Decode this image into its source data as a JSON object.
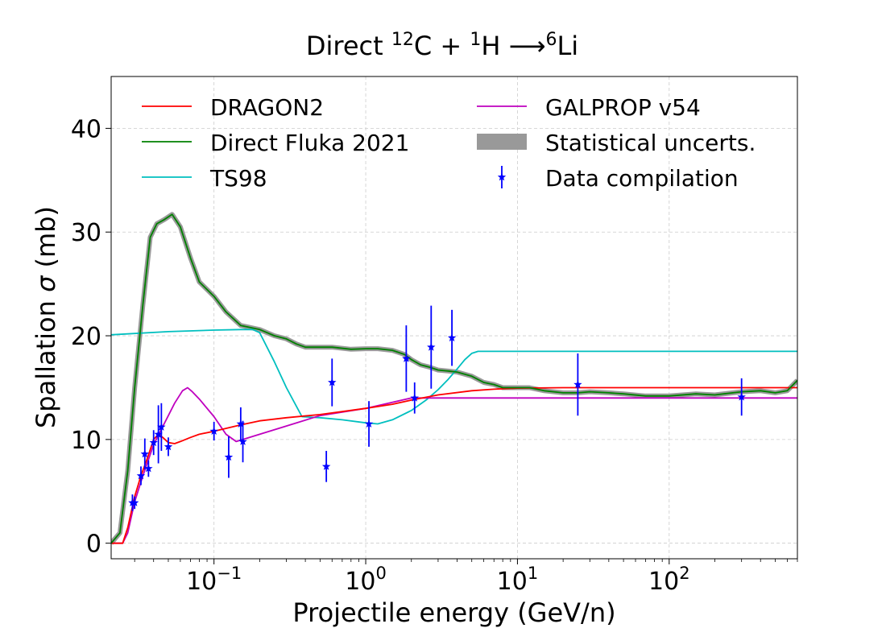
{
  "chart_data": {
    "type": "line",
    "title": {
      "prefix": "Direct ",
      "sup1": "12",
      "mid1": "C + ",
      "sup2": "1",
      "mid2": "H  ⟶",
      "sup3": "6",
      "end": "Li"
    },
    "xlabel": "Projectile energy (GeV/n)",
    "ylabel": {
      "prefix": "Spallation ",
      "symbol": "σ",
      "suffix": " (mb)"
    },
    "xscale": "log",
    "xlim": [
      0.021,
      700
    ],
    "ylim": [
      -1.5,
      45
    ],
    "xticks": [
      {
        "value": 0.1,
        "base": "10",
        "exp": "−1"
      },
      {
        "value": 1,
        "base": "10",
        "exp": "0"
      },
      {
        "value": 10,
        "base": "10",
        "exp": "1"
      },
      {
        "value": 100,
        "base": "10",
        "exp": "2"
      }
    ],
    "yticks": [
      {
        "value": 0,
        "label": "0"
      },
      {
        "value": 10,
        "label": "10"
      },
      {
        "value": 20,
        "label": "20"
      },
      {
        "value": 30,
        "label": "30"
      },
      {
        "value": 40,
        "label": "40"
      }
    ],
    "grid": true,
    "legend": {
      "position": "top",
      "columns": 2
    },
    "series": [
      {
        "name": "DRAGON2",
        "kind": "line",
        "color": "#ff0000",
        "x": [
          0.021,
          0.025,
          0.027,
          0.03,
          0.033,
          0.036,
          0.04,
          0.043,
          0.046,
          0.05,
          0.055,
          0.06,
          0.07,
          0.08,
          0.1,
          0.15,
          0.2,
          0.3,
          0.5,
          0.7,
          1.0,
          1.5,
          2,
          3,
          5,
          7,
          10,
          20,
          50,
          100,
          300,
          700
        ],
        "y": [
          0,
          0,
          1.5,
          4.5,
          6.5,
          8,
          10,
          10.5,
          10.2,
          9.7,
          9.6,
          9.8,
          10.2,
          10.5,
          10.8,
          11.4,
          11.8,
          12.1,
          12.4,
          12.7,
          13,
          13.4,
          13.8,
          14.3,
          14.7,
          14.85,
          14.95,
          15,
          15,
          15,
          15,
          15
        ]
      },
      {
        "name": "Direct Fluka 2021",
        "kind": "line",
        "color": "#008000",
        "x": [
          0.021,
          0.024,
          0.027,
          0.03,
          0.034,
          0.038,
          0.042,
          0.047,
          0.053,
          0.06,
          0.07,
          0.08,
          0.1,
          0.12,
          0.15,
          0.2,
          0.25,
          0.3,
          0.35,
          0.4,
          0.5,
          0.6,
          0.8,
          1.0,
          1.2,
          1.5,
          1.8,
          2.0,
          2.3,
          2.6,
          3.0,
          3.5,
          4.0,
          5.0,
          6.0,
          7.0,
          8.0,
          10,
          12,
          15,
          20,
          25,
          30,
          40,
          50,
          70,
          100,
          150,
          200,
          300,
          400,
          500,
          600,
          700
        ],
        "y": [
          0,
          1,
          7,
          15,
          23,
          29.5,
          30.8,
          31.2,
          31.7,
          30.5,
          27.5,
          25.2,
          23.8,
          22.3,
          21,
          20.6,
          20,
          19.7,
          19.2,
          18.9,
          18.9,
          18.9,
          18.7,
          18.75,
          18.75,
          18.6,
          18.2,
          17.7,
          17.2,
          17,
          16.7,
          16.6,
          16.5,
          16.1,
          15.5,
          15.3,
          15,
          15,
          15,
          14.7,
          14.5,
          14.5,
          14.6,
          14.5,
          14.4,
          14.2,
          14.2,
          14.4,
          14.3,
          14.6,
          14.7,
          14.5,
          14.7,
          15.7
        ]
      },
      {
        "name": "TS98",
        "kind": "line",
        "color": "#00bfbf",
        "x": [
          0.021,
          0.05,
          0.1,
          0.15,
          0.18,
          0.2,
          0.25,
          0.3,
          0.38,
          0.5,
          0.7,
          1.0,
          1.2,
          1.5,
          2.0,
          2.5,
          3.0,
          3.5,
          4.0,
          4.5,
          5.0,
          5.5,
          7,
          10,
          30,
          100,
          700
        ],
        "y": [
          20.1,
          20.4,
          20.55,
          20.6,
          20.6,
          20.3,
          17.5,
          15,
          12.2,
          12.1,
          11.9,
          11.6,
          11.5,
          11.9,
          12.8,
          13.8,
          14.8,
          15.8,
          16.8,
          17.7,
          18.3,
          18.5,
          18.5,
          18.5,
          18.5,
          18.5,
          18.5
        ]
      },
      {
        "name": "GALPROP v54",
        "kind": "line",
        "color": "#bf00bf",
        "x": [
          0.021,
          0.025,
          0.027,
          0.03,
          0.034,
          0.04,
          0.045,
          0.05,
          0.055,
          0.062,
          0.067,
          0.072,
          0.08,
          0.1,
          0.12,
          0.14,
          0.2,
          0.3,
          0.5,
          1.0,
          2.0,
          3.0,
          10,
          100,
          700
        ],
        "y": [
          0,
          0,
          1,
          4,
          6.5,
          9.5,
          11,
          12.3,
          13.5,
          14.7,
          15,
          14.6,
          13.9,
          12.2,
          10.5,
          9.8,
          10.5,
          11.3,
          12.3,
          13,
          14,
          14,
          14,
          14,
          14
        ]
      },
      {
        "name": "Statistical uncerts.",
        "kind": "band",
        "color": "#999999"
      },
      {
        "name": "Data compilation",
        "kind": "points",
        "color": "#0000ff",
        "x": [
          0.029,
          0.03,
          0.033,
          0.035,
          0.037,
          0.04,
          0.043,
          0.045,
          0.05,
          0.1,
          0.125,
          0.15,
          0.155,
          0.55,
          0.6,
          1.05,
          1.85,
          2.1,
          2.7,
          3.7,
          25,
          300
        ],
        "y": [
          3.9,
          3.9,
          6.5,
          8.6,
          7.2,
          9.7,
          10.5,
          11.2,
          9.3,
          10.8,
          8.3,
          11.5,
          9.8,
          7.4,
          15.5,
          11.5,
          17.8,
          14,
          18.9,
          19.8,
          15.3,
          14.1
        ],
        "yerr": [
          0.8,
          0.6,
          0.9,
          1.5,
          0.8,
          1.2,
          2.8,
          2.3,
          0.9,
          0.9,
          2.0,
          1.6,
          2.0,
          1.5,
          2.3,
          2.2,
          3.2,
          1.5,
          4.0,
          2.7,
          3.0,
          1.8
        ]
      }
    ]
  }
}
